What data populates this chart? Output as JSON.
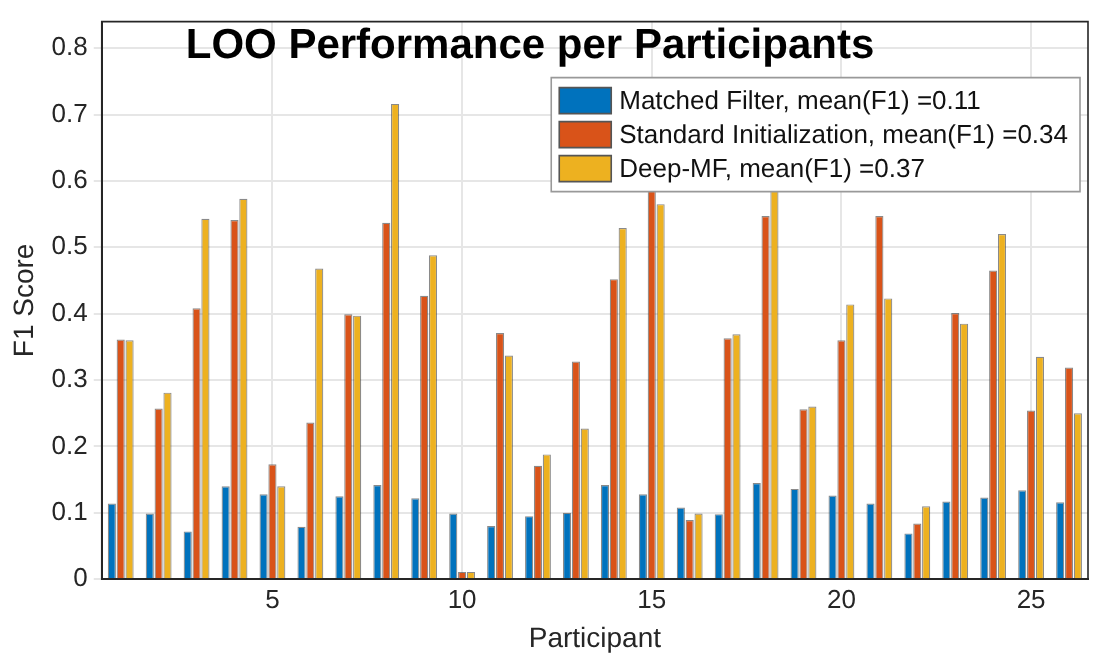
{
  "chart_data": {
    "type": "bar",
    "title": "LOO Performance per Participants",
    "xlabel": "Participant",
    "ylabel": "F1 Score",
    "categories": [
      null,
      null,
      null,
      null,
      "5",
      null,
      null,
      null,
      null,
      "10",
      null,
      null,
      null,
      null,
      "15",
      null,
      null,
      null,
      null,
      "20",
      null,
      null,
      null,
      null,
      "25",
      null
    ],
    "series": [
      {
        "name": "Matched Filter, mean(F1) =0.11",
        "color": "#0072bd",
        "values": [
          0.114,
          0.099,
          0.072,
          0.14,
          0.128,
          0.079,
          0.125,
          0.142,
          0.122,
          0.099,
          0.08,
          0.095,
          0.1,
          0.142,
          0.128,
          0.108,
          0.098,
          0.145,
          0.136,
          0.126,
          0.114,
          0.069,
          0.117,
          0.123,
          0.134,
          0.116
        ]
      },
      {
        "name": "Standard Initialization, mean(F1) =0.34",
        "color": "#d95319",
        "values": [
          0.361,
          0.257,
          0.408,
          0.541,
          0.173,
          0.236,
          0.399,
          0.537,
          0.427,
          0.011,
          0.371,
          0.171,
          0.328,
          0.452,
          0.59,
          0.089,
          0.363,
          0.547,
          0.256,
          0.36,
          0.547,
          0.084,
          0.401,
          0.465,
          0.254,
          0.319
        ]
      },
      {
        "name": "Deep-MF, mean(F1) =0.37",
        "color": "#edb120",
        "values": [
          0.36,
          0.281,
          0.543,
          0.573,
          0.14,
          0.468,
          0.397,
          0.716,
          0.488,
          0.011,
          0.337,
          0.188,
          0.227,
          0.529,
          0.565,
          0.099,
          0.369,
          0.59,
          0.26,
          0.414,
          0.423,
          0.11,
          0.385,
          0.52,
          0.335,
          0.25
        ]
      }
    ],
    "ylim": [
      0,
      0.84
    ],
    "yticks": [
      0,
      0.1,
      0.2,
      0.3,
      0.4,
      0.5,
      0.6,
      0.7,
      0.8
    ],
    "grid": true,
    "legend": "top right"
  }
}
